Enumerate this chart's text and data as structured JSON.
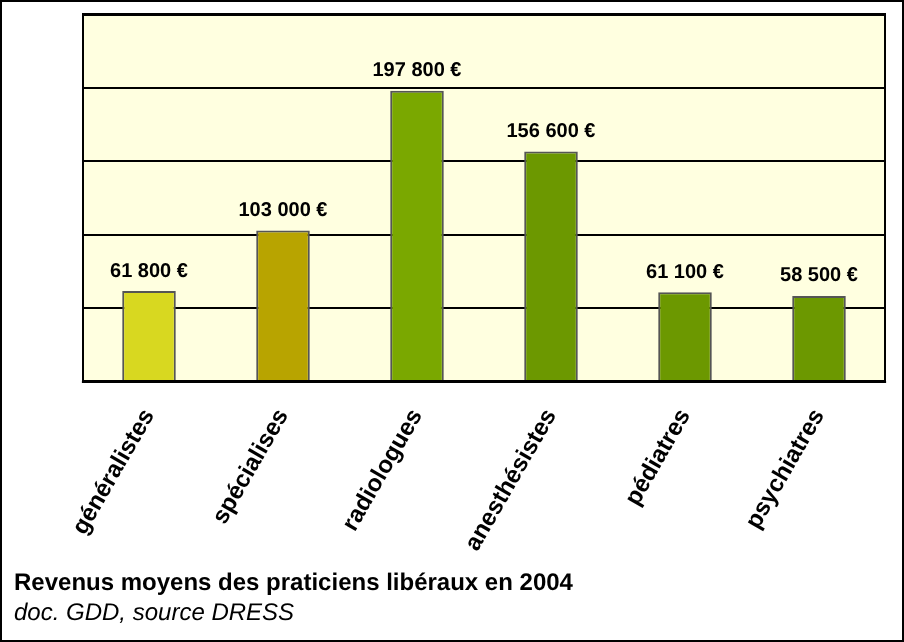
{
  "chart_data": {
    "type": "bar",
    "title": "Revenus moyens des praticiens libéraux en 2004",
    "annotations": [
      "doc. GDD, source DRESS"
    ],
    "categories": [
      "généralistes",
      "spécialises",
      "radiologues",
      "anesthésistes",
      "pédiatres",
      "psychiatres"
    ],
    "values": [
      61800,
      103000,
      197800,
      156600,
      61100,
      58500
    ],
    "value_labels": [
      "61 800 €",
      "103 000 €",
      "197 800 €",
      "156 600 €",
      "61 100 €",
      "58 500 €"
    ],
    "colors": [
      "#d8d820",
      "#b8a400",
      "#7aa800",
      "#6c9800",
      "#6c9800",
      "#6c9800"
    ],
    "ylim": [
      0,
      250000
    ],
    "yticks": [
      {
        "value": 0,
        "label": null
      },
      {
        "value": 50000,
        "label": null
      },
      {
        "value": 100000,
        "label": null
      },
      {
        "value": 150000,
        "label": null
      },
      {
        "value": 200000,
        "label": null
      },
      {
        "value": 250000,
        "label": null
      }
    ],
    "tick_labels": "x",
    "grid": "y",
    "legend": false
  }
}
